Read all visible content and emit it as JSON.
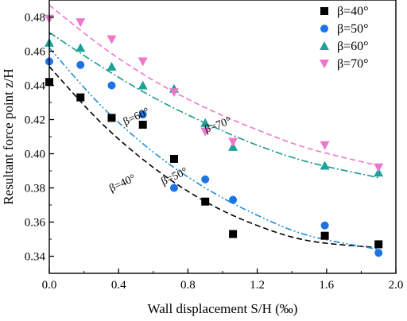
{
  "chart_data": {
    "type": "scatter",
    "title": "",
    "xlabel": "Wall displacement S/H (‰)",
    "ylabel": "Resultant force point z/H",
    "xlim": [
      0,
      2.0
    ],
    "ylim": [
      0.33,
      0.49
    ],
    "xticks": [
      0.0,
      0.4,
      0.8,
      1.2,
      1.6,
      2.0
    ],
    "xtick_labels": [
      "0.0",
      "0.4",
      "0.8",
      "1.2",
      "1.6",
      "2.0"
    ],
    "yticks": [
      0.34,
      0.36,
      0.38,
      0.4,
      0.42,
      0.44,
      0.46,
      0.48
    ],
    "ytick_labels": [
      "0.34",
      "0.36",
      "0.38",
      "0.40",
      "0.42",
      "0.44",
      "0.46",
      "0.48"
    ],
    "grid": false,
    "legend_position": "top-right",
    "series": [
      {
        "name": "β=40°",
        "marker": "square",
        "color": "#000000",
        "x": [
          0.0,
          0.18,
          0.36,
          0.54,
          0.72,
          0.9,
          1.06,
          1.59,
          1.9
        ],
        "y": [
          0.442,
          0.433,
          0.421,
          0.417,
          0.397,
          0.372,
          0.353,
          0.352,
          0.347
        ],
        "fit": {
          "line_style": "dashed",
          "color": "#000000",
          "x": [
            0.0,
            0.3,
            0.6,
            0.9,
            1.2,
            1.5,
            1.9
          ],
          "y": [
            0.451,
            0.418,
            0.392,
            0.372,
            0.358,
            0.349,
            0.345
          ]
        }
      },
      {
        "name": "β=50°",
        "marker": "circle",
        "color": "#1a73e8",
        "x": [
          0.0,
          0.18,
          0.36,
          0.54,
          0.72,
          0.9,
          1.06,
          1.59,
          1.9
        ],
        "y": [
          0.454,
          0.452,
          0.44,
          0.423,
          0.38,
          0.385,
          0.373,
          0.358,
          0.342
        ],
        "fit": {
          "line_style": "dash-dot-dot",
          "color": "#1f8fd6",
          "x": [
            0.0,
            0.3,
            0.6,
            0.9,
            1.2,
            1.5,
            1.9
          ],
          "y": [
            0.462,
            0.428,
            0.401,
            0.38,
            0.364,
            0.352,
            0.344
          ]
        }
      },
      {
        "name": "β=60°",
        "marker": "triangle-up",
        "color": "#1aa39a",
        "x": [
          0.0,
          0.18,
          0.36,
          0.54,
          0.72,
          0.9,
          1.06,
          1.59,
          1.9
        ],
        "y": [
          0.465,
          0.462,
          0.451,
          0.44,
          0.438,
          0.418,
          0.404,
          0.393,
          0.389
        ],
        "fit": {
          "line_style": "dash-dot",
          "color": "#1a9a8c",
          "x": [
            0.0,
            0.3,
            0.6,
            0.9,
            1.2,
            1.5,
            1.9
          ],
          "y": [
            0.471,
            0.451,
            0.433,
            0.418,
            0.405,
            0.395,
            0.386
          ]
        }
      },
      {
        "name": "β=70°",
        "marker": "triangle-down",
        "color": "#ee77cc",
        "x": [
          0.0,
          0.18,
          0.36,
          0.54,
          0.72,
          0.9,
          1.06,
          1.59,
          1.9
        ],
        "y": [
          0.479,
          0.477,
          0.467,
          0.454,
          0.436,
          0.413,
          0.407,
          0.405,
          0.392
        ],
        "fit": {
          "line_style": "dashed",
          "color": "#ee77cc",
          "x": [
            0.0,
            0.3,
            0.6,
            0.9,
            1.2,
            1.5,
            1.9
          ],
          "y": [
            0.487,
            0.463,
            0.443,
            0.427,
            0.414,
            0.403,
            0.393
          ]
        }
      }
    ],
    "annotations": [
      {
        "text": "β=40°",
        "x": 0.43,
        "y": 0.381,
        "rotate": -25
      },
      {
        "text": "β=50°",
        "x": 0.73,
        "y": 0.385,
        "rotate": -25
      },
      {
        "text": "β=60°",
        "x": 0.51,
        "y": 0.42,
        "rotate": -25
      },
      {
        "text": "β=70°",
        "x": 0.98,
        "y": 0.415,
        "rotate": -20
      }
    ]
  }
}
